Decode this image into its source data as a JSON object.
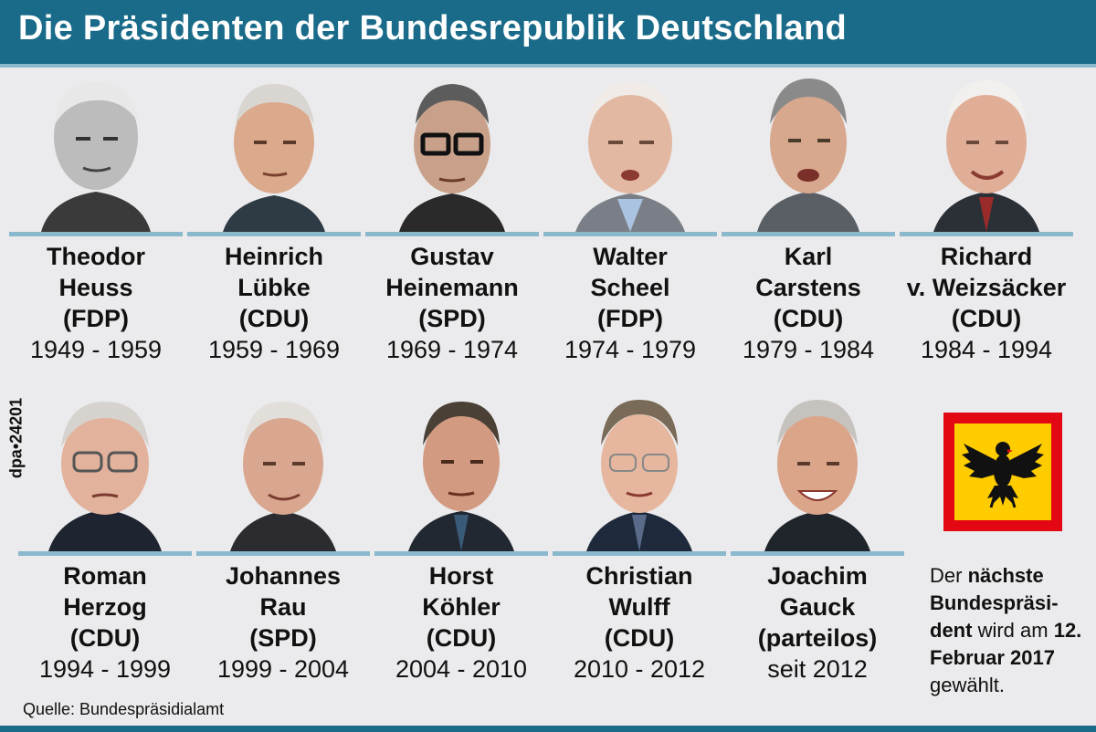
{
  "title": "Die Präsidenten der Bundesrepublik Deutschland",
  "credit": "dpa•24201",
  "source": "Quelle: Bundespräsidialamt",
  "colors": {
    "header": "#1a6b8a",
    "accent_line": "#8ab8cc",
    "background": "#ebebed",
    "flag_border": "#e30613",
    "flag_field": "#ffcc00"
  },
  "presidents": [
    {
      "first": "Theodor",
      "last": "Heuss",
      "party": "(FDP)",
      "term": "1949 - 1959"
    },
    {
      "first": "Heinrich",
      "last": "Lübke",
      "party": "(CDU)",
      "term": "1959 - 1969"
    },
    {
      "first": "Gustav",
      "last": "Heinemann",
      "party": "(SPD)",
      "term": "1969 - 1974"
    },
    {
      "first": "Walter",
      "last": "Scheel",
      "party": "(FDP)",
      "term": "1974 - 1979"
    },
    {
      "first": "Karl",
      "last": "Carstens",
      "party": "(CDU)",
      "term": "1979 - 1984"
    },
    {
      "first": "Richard",
      "last": "v. Weizsäcker",
      "party": "(CDU)",
      "term": "1984 - 1994"
    },
    {
      "first": "Roman",
      "last": "Herzog",
      "party": "(CDU)",
      "term": "1994 - 1999"
    },
    {
      "first": "Johannes",
      "last": "Rau",
      "party": "(SPD)",
      "term": "1999 - 2004"
    },
    {
      "first": "Horst",
      "last": "Köhler",
      "party": "(CDU)",
      "term": "2004 - 2010"
    },
    {
      "first": "Christian",
      "last": "Wulff",
      "party": "(CDU)",
      "term": "2010 - 2012"
    },
    {
      "first": "Joachim",
      "last": "Gauck",
      "party": "(parteilos)",
      "term": "seit 2012"
    }
  ],
  "note": {
    "t1": "Der ",
    "t2": "nächste Bundespräsi-dent",
    "t3": " wird am ",
    "t4": "12. Februar 2017",
    "t5": " gewählt."
  }
}
